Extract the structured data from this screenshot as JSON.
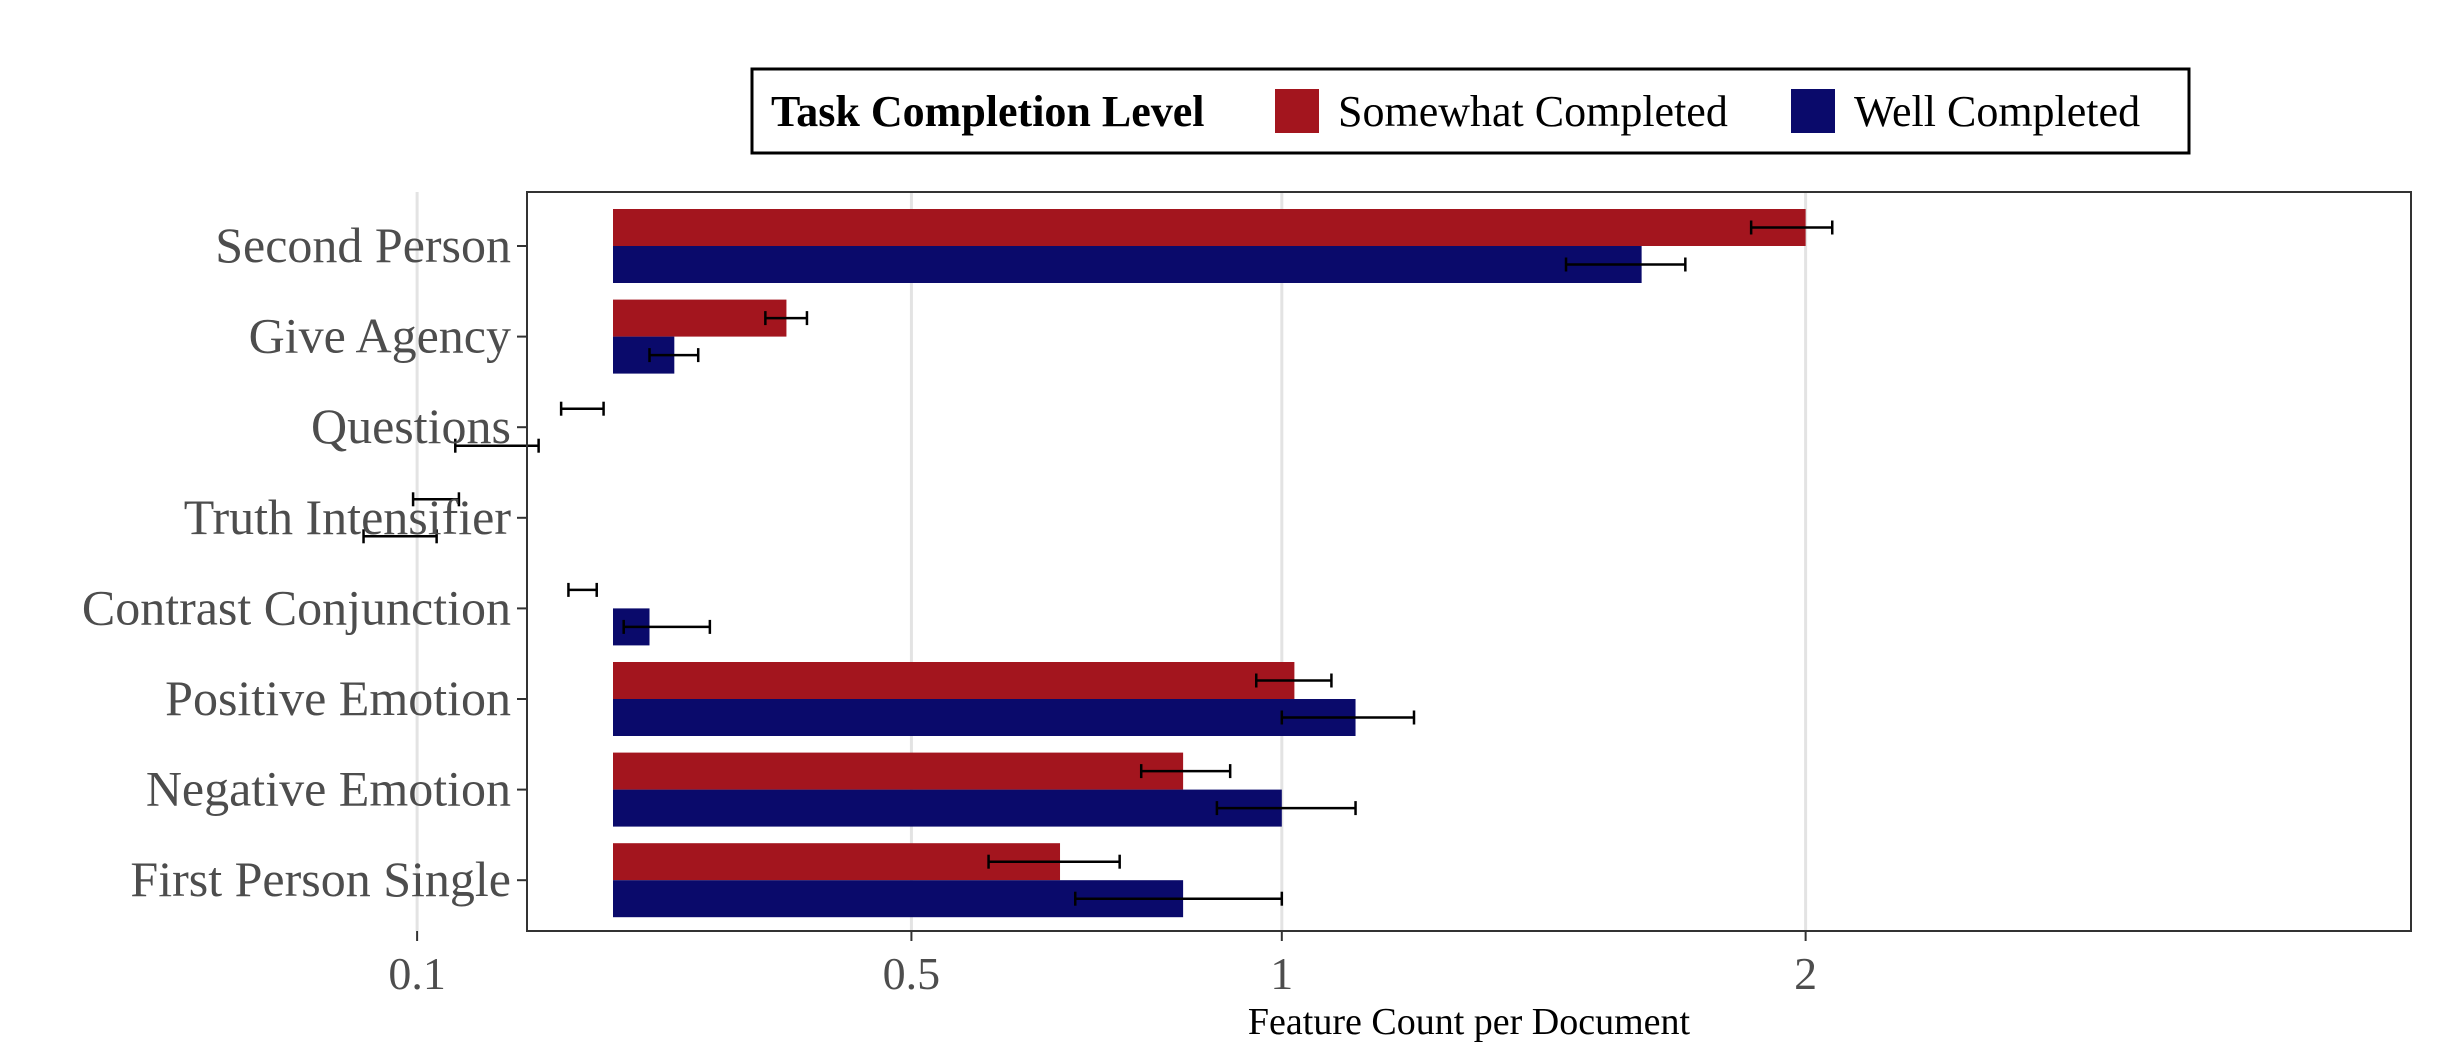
{
  "chart_data": {
    "type": "bar",
    "orientation": "horizontal",
    "xlabel": "Feature Count per Document",
    "ylabel": "",
    "x_scale": "sqrt",
    "xlim": [
      0.02,
      2.3
    ],
    "xticks": [
      {
        "value": 0.1,
        "label": "0.1"
      },
      {
        "value": 0.5,
        "label": "0.5"
      },
      {
        "value": 1,
        "label": "1"
      },
      {
        "value": 2,
        "label": "2"
      }
    ],
    "grid": "vertical major lines",
    "legend": {
      "title": "Task Completion Level",
      "position": "top"
    },
    "categories": [
      "Second Person",
      "Give Agency",
      "Questions",
      "Truth Intensifier",
      "Contrast Conjunction",
      "Positive Emotion",
      "Negative Emotion",
      "First Person Single"
    ],
    "series": [
      {
        "name": "Somewhat Completed",
        "color": "#a3151e",
        "values": [
          2.0,
          0.37,
          0.2,
          0.11,
          0.2,
          1.02,
          0.85,
          0.68
        ],
        "err_low": [
          1.88,
          0.35,
          0.185,
          0.098,
          0.19,
          0.96,
          0.79,
          0.59
        ],
        "err_high": [
          2.06,
          0.39,
          0.215,
          0.122,
          0.21,
          1.08,
          0.92,
          0.76
        ]
      },
      {
        "name": "Well Completed",
        "color": "#0a0a6b",
        "values": [
          1.65,
          0.27,
          0.14,
          0.09,
          0.25,
          1.12,
          1.0,
          0.85
        ],
        "err_low": [
          1.5,
          0.25,
          0.12,
          0.075,
          0.23,
          1.0,
          0.9,
          0.7
        ],
        "err_high": [
          1.74,
          0.29,
          0.17,
          0.11,
          0.3,
          1.22,
          1.12,
          1.0
        ]
      }
    ]
  }
}
